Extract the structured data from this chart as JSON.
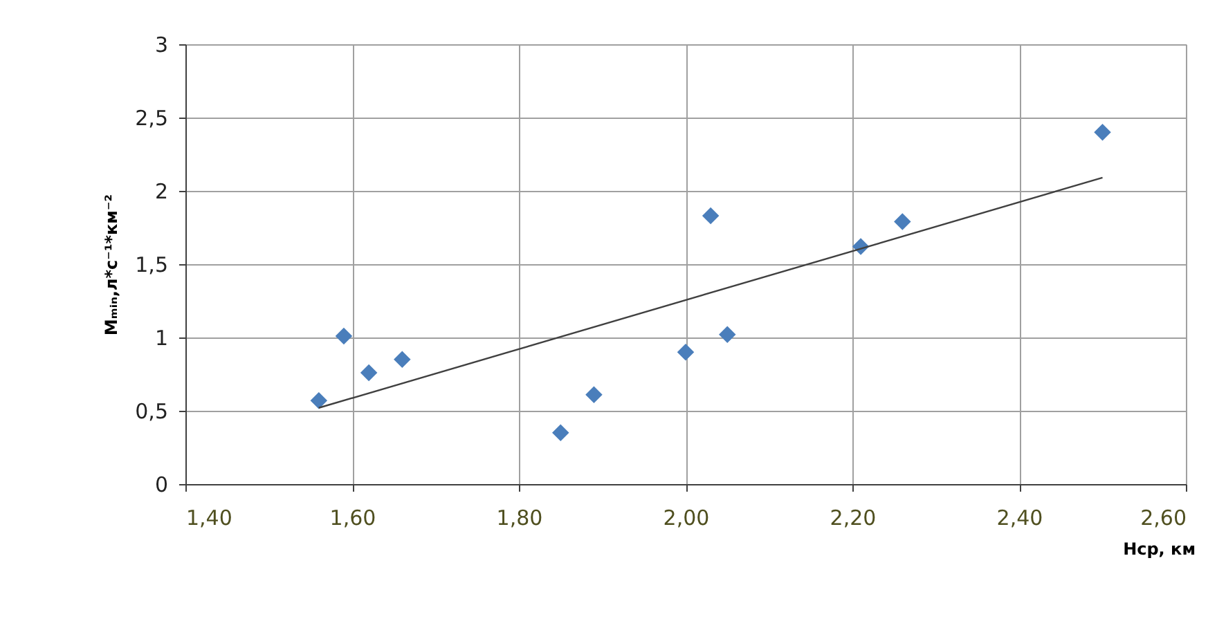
{
  "chart_data": {
    "type": "scatter",
    "xlabel": "Hср, км",
    "ylabel": "Mₘᵢₙ,л*с⁻¹*км⁻²",
    "series": [
      {
        "color": "#4a7ebb",
        "marker": "diamond",
        "x": [
          1.56,
          1.59,
          1.62,
          1.66,
          1.85,
          1.89,
          2.0,
          2.03,
          2.05,
          2.21,
          2.26,
          2.5
        ],
        "values": [
          0.57,
          1.01,
          0.76,
          0.85,
          0.35,
          0.61,
          0.9,
          1.83,
          1.02,
          1.62,
          1.79,
          2.4
        ]
      },
      {
        "type": "line",
        "color": "#404040",
        "line_style": "solid",
        "x": [
          1.56,
          2.5
        ],
        "values": [
          0.52,
          2.09
        ]
      }
    ],
    "xlim": [
      1.4,
      2.6
    ],
    "xticks": [
      {
        "value": 1.4,
        "label": "1,40"
      },
      {
        "value": 1.6,
        "label": "1,60"
      },
      {
        "value": 1.8,
        "label": "1,80"
      },
      {
        "value": 2.0,
        "label": "2,00"
      },
      {
        "value": 2.2,
        "label": "2,20"
      },
      {
        "value": 2.4,
        "label": "2,40"
      },
      {
        "value": 2.6,
        "label": "2,60"
      }
    ],
    "ylim": [
      0,
      3
    ],
    "yticks": [
      0,
      {
        "value": 0.5,
        "label": "0,5"
      },
      1,
      {
        "value": 1.5,
        "label": "1,5"
      },
      2,
      {
        "value": 2.5,
        "label": "2,5"
      },
      3
    ],
    "grid": true
  }
}
